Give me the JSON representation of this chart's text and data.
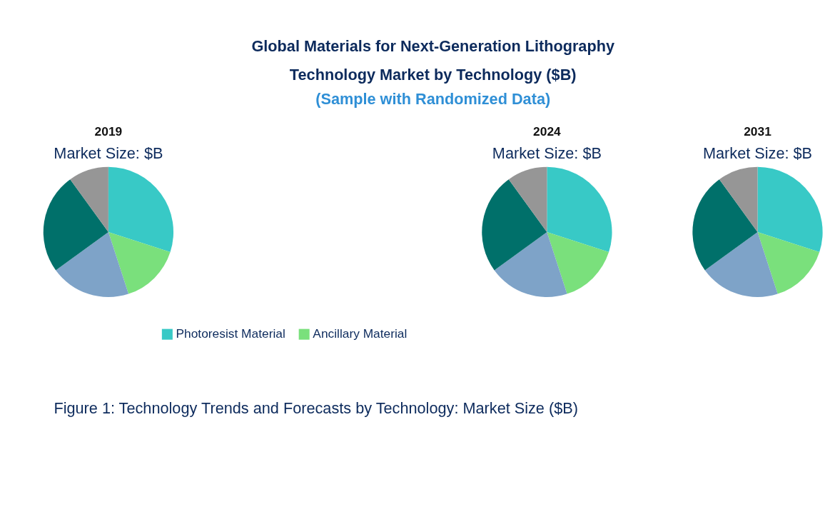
{
  "chart_data": [
    {
      "type": "other",
      "title": "Global Materials for Next-Generation Lithography\nTechnology Market by Technology ($B)",
      "subtitle": "(Sample with Randomized Data)",
      "annotations": [
        "Figure 1: Technology Trends and Forecasts by Technology: Market Size ($B)"
      ]
    },
    {
      "type": "pie",
      "title": "2019",
      "subtitle": "Market Size: $B",
      "categories": [
        "Photoresist Material",
        "Ancillary Material",
        null,
        null,
        null
      ],
      "values": [
        30,
        15,
        20,
        25,
        10
      ],
      "colors": [
        "#38c9c6",
        "#7ae07c",
        "#7ea3c8",
        "#00706a",
        "#969696"
      ],
      "legend": "bottom"
    },
    {
      "type": "pie",
      "title": "2024",
      "subtitle": "Market Size: $B",
      "categories": [
        null,
        null,
        null,
        null,
        null
      ],
      "values": [
        30,
        15,
        20,
        25,
        10
      ],
      "colors": [
        "#38c9c6",
        "#7ae07c",
        "#7ea3c8",
        "#00706a",
        "#969696"
      ]
    },
    {
      "type": "pie",
      "title": "2031",
      "subtitle": "Market Size: $B",
      "categories": [
        null,
        null,
        null,
        null,
        null
      ],
      "values": [
        30,
        15,
        20,
        25,
        10
      ],
      "colors": [
        "#38c9c6",
        "#7ae07c",
        "#7ea3c8",
        "#00706a",
        "#969696"
      ]
    }
  ]
}
